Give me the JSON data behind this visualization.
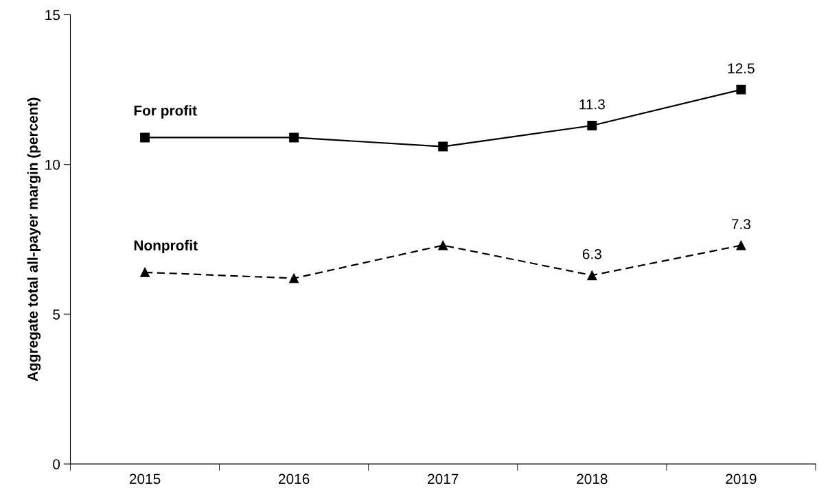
{
  "chart_data": {
    "type": "line",
    "ylabel": "Aggregate total all-payer margin (percent)",
    "categories": [
      "2015",
      "2016",
      "2017",
      "2018",
      "2019"
    ],
    "series": [
      {
        "name": "For profit",
        "color": "#000000",
        "marker": "square",
        "line_style": "solid",
        "values": [
          10.9,
          10.9,
          10.6,
          11.3,
          12.5
        ],
        "value_labels": [
          null,
          null,
          null,
          "11.3",
          "12.5"
        ]
      },
      {
        "name": "Nonprofit",
        "color": "#000000",
        "marker": "triangle",
        "line_style": "dashed",
        "values": [
          6.4,
          6.2,
          7.3,
          6.3,
          7.3
        ],
        "value_labels": [
          null,
          null,
          null,
          "6.3",
          "7.3"
        ]
      }
    ],
    "ylim": [
      0,
      15
    ],
    "yticks": [
      0,
      5,
      10,
      15
    ],
    "grid": false,
    "legend": false
  }
}
